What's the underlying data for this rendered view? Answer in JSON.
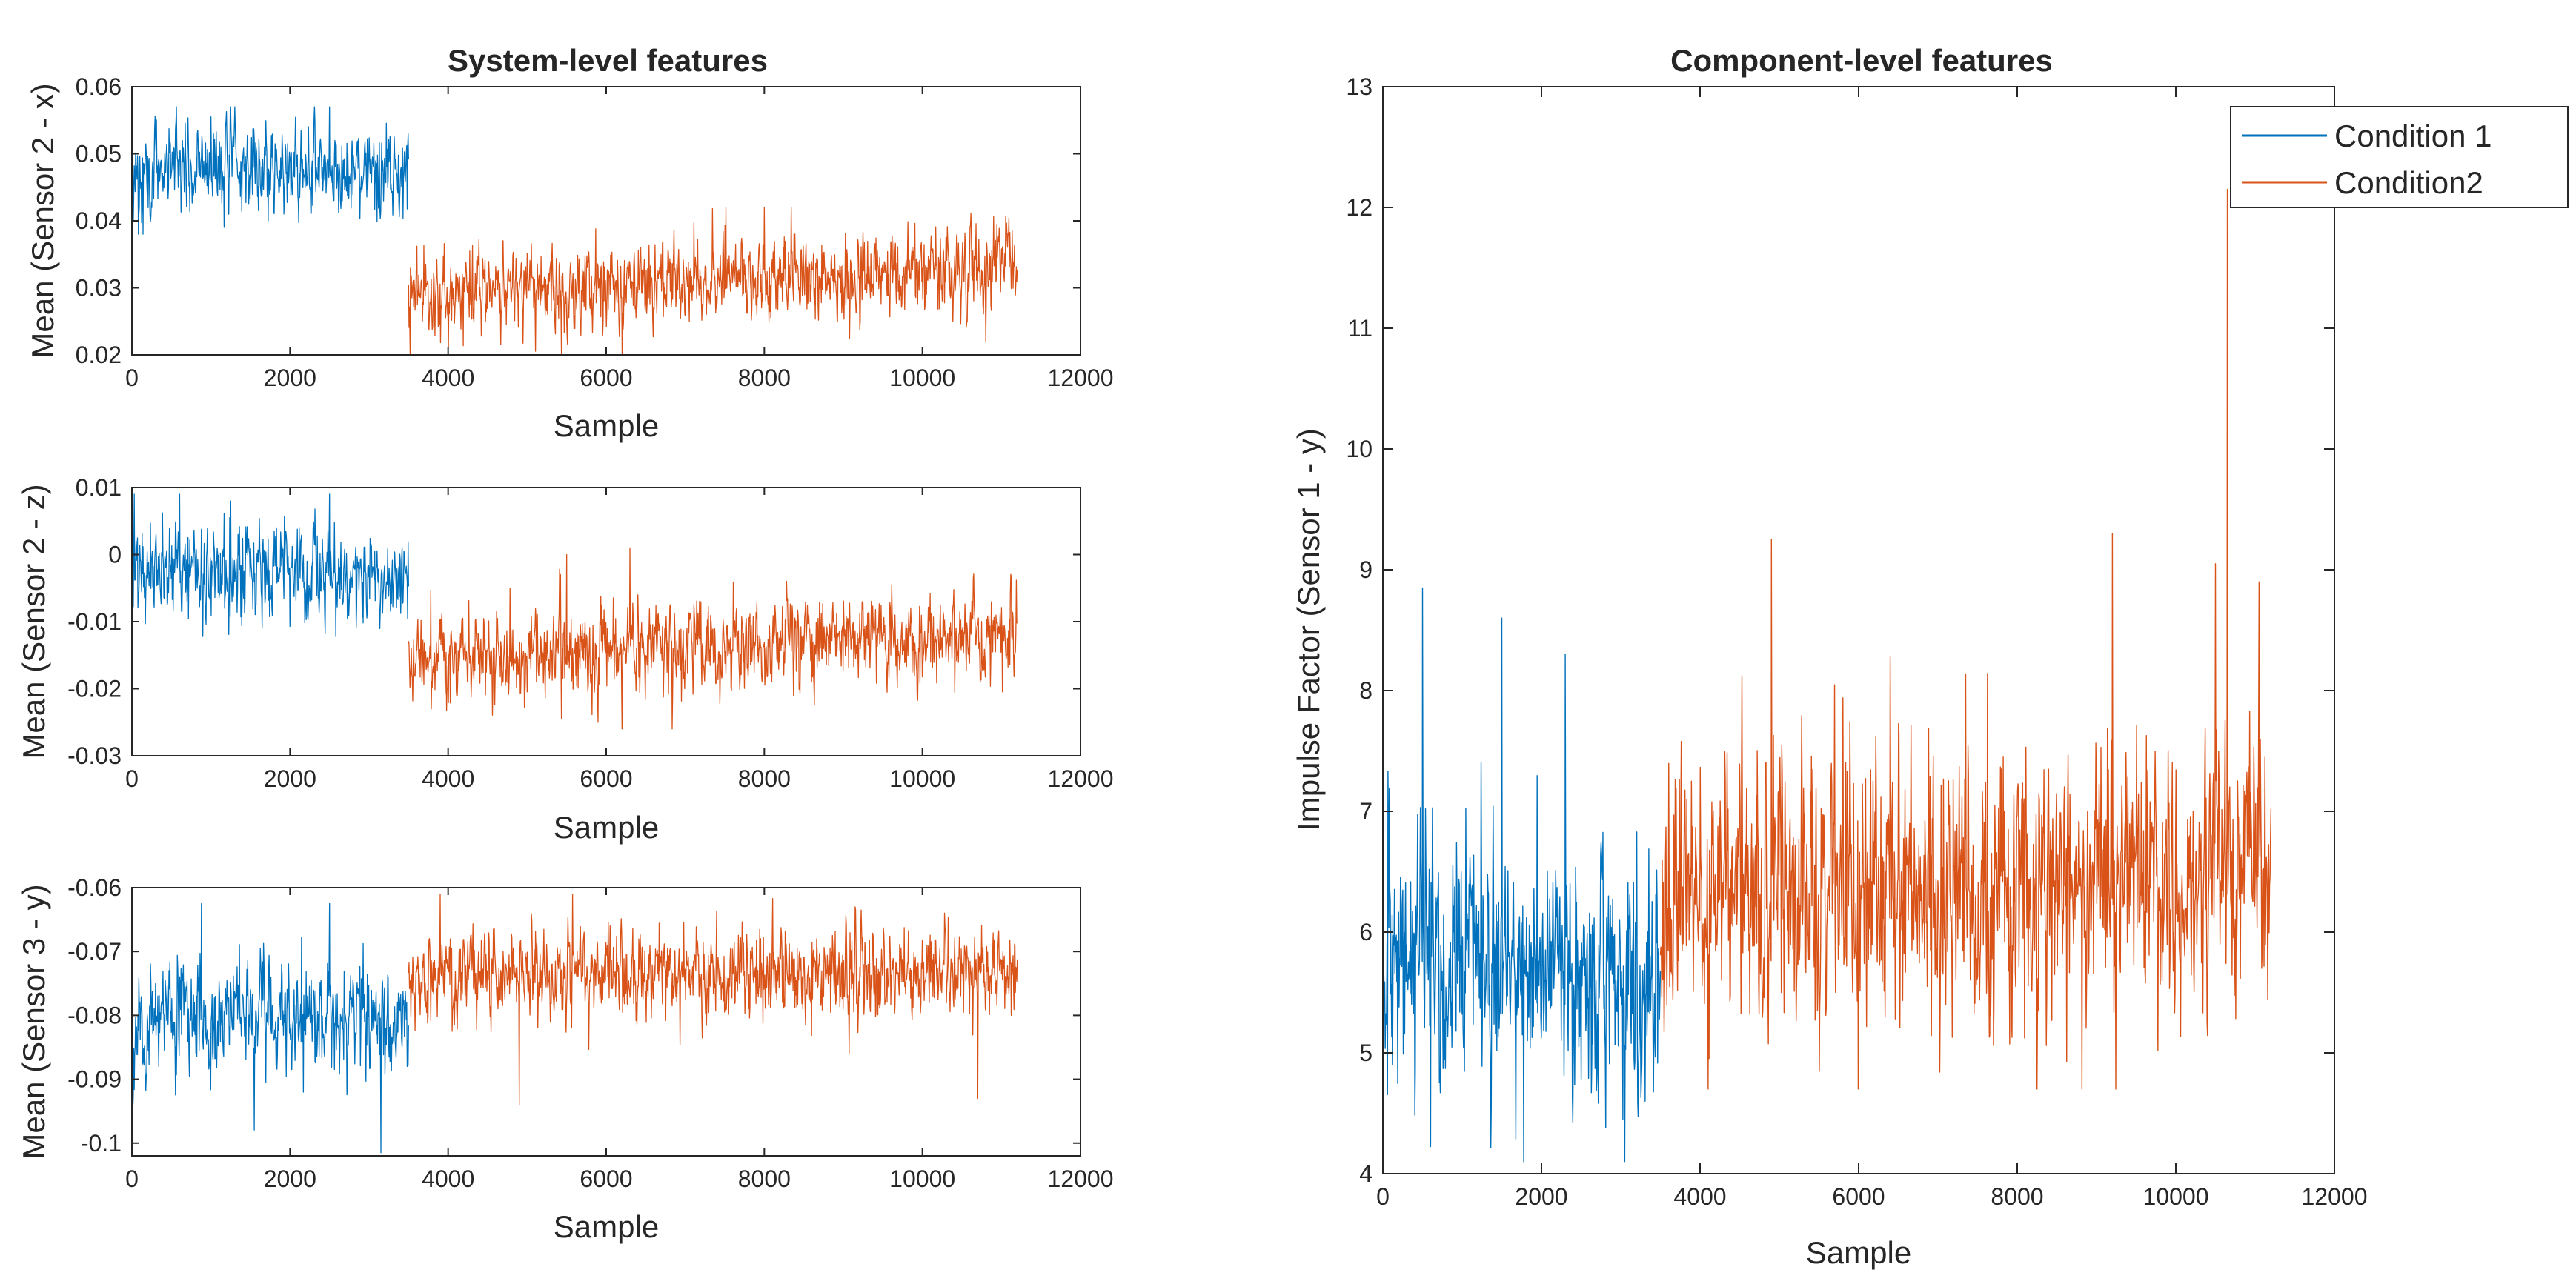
{
  "figure": {
    "background": "#ffffff",
    "colors": {
      "condition1": "#0072BD",
      "condition2": "#D95319",
      "axis": "#262626"
    }
  },
  "chart_data": [
    {
      "id": "sys-x",
      "type": "line",
      "title": "System-level features",
      "xlabel": "Sample",
      "ylabel": "Mean (Sensor 2 - x)",
      "xlim": [
        0,
        12000
      ],
      "ylim": [
        0.02,
        0.06
      ],
      "xticks": [
        0,
        2000,
        4000,
        6000,
        8000,
        10000,
        12000
      ],
      "xtick_labels": [
        "0",
        "2000",
        "4000",
        "6000",
        "8000",
        "10000",
        "12000"
      ],
      "yticks": [
        0.02,
        0.03,
        0.04,
        0.05,
        0.06
      ],
      "ytick_labels": [
        "0.02",
        "0.03",
        "0.04",
        "0.05",
        "0.06"
      ],
      "grid": false,
      "series": [
        {
          "name": "Condition 1",
          "color": "#0072BD",
          "x_range": [
            0,
            3500
          ],
          "mean": 0.0475,
          "spread": 0.0035,
          "min": 0.038,
          "max": 0.057,
          "trend": 0,
          "outliers": [
            [
              2500,
              0.057
            ],
            [
              1000,
              0.0555
            ]
          ]
        },
        {
          "name": "Condition2",
          "color": "#D95319",
          "x_range": [
            3500,
            11200
          ],
          "mean": 0.029,
          "spread": 0.0032,
          "min": 0.02,
          "max": 0.042,
          "trend": 0.004,
          "outliers": [
            [
              3520,
              0.02
            ],
            [
              8000,
              0.042
            ]
          ]
        }
      ]
    },
    {
      "id": "sys-z",
      "type": "line",
      "title": "",
      "xlabel": "Sample",
      "ylabel": "Mean (Sensor 2 - z)",
      "xlim": [
        0,
        12000
      ],
      "ylim": [
        -0.03,
        0.01
      ],
      "xticks": [
        0,
        2000,
        4000,
        6000,
        8000,
        10000,
        12000
      ],
      "xtick_labels": [
        "0",
        "2000",
        "4000",
        "6000",
        "8000",
        "10000",
        "12000"
      ],
      "yticks": [
        -0.03,
        -0.02,
        -0.01,
        0,
        0.01
      ],
      "ytick_labels": [
        "-0.03",
        "-0.02",
        "-0.01",
        "0",
        "0.01"
      ],
      "grid": false,
      "series": [
        {
          "name": "Condition 1",
          "color": "#0072BD",
          "x_range": [
            0,
            3500
          ],
          "mean": -0.003,
          "spread": 0.0035,
          "min": -0.013,
          "max": 0.009,
          "trend": 0,
          "outliers": [
            [
              1250,
              0.008
            ],
            [
              2500,
              0.009
            ],
            [
              30,
              0.009
            ]
          ]
        },
        {
          "name": "Condition2",
          "color": "#D95319",
          "x_range": [
            3500,
            11200
          ],
          "mean": -0.0155,
          "spread": 0.0033,
          "min": -0.026,
          "max": 0.001,
          "trend": 0.004,
          "outliers": [
            [
              6300,
              0.001
            ],
            [
              5500,
              0.0
            ],
            [
              6200,
              -0.026
            ]
          ]
        }
      ]
    },
    {
      "id": "sys-y3",
      "type": "line",
      "title": "",
      "xlabel": "Sample",
      "ylabel": "Mean (Sensor 3 - y)",
      "xlim": [
        0,
        12000
      ],
      "ylim": [
        -0.102,
        -0.06
      ],
      "xticks": [
        0,
        2000,
        4000,
        6000,
        8000,
        10000,
        12000
      ],
      "xtick_labels": [
        "0",
        "2000",
        "4000",
        "6000",
        "8000",
        "10000",
        "12000"
      ],
      "yticks": [
        -0.1,
        -0.09,
        -0.08,
        -0.07,
        -0.06
      ],
      "ytick_labels": [
        "-0.1",
        "-0.09",
        "-0.08",
        "-0.07",
        "-0.06"
      ],
      "grid": false,
      "series": [
        {
          "name": "Condition 1",
          "color": "#0072BD",
          "x_range": [
            0,
            3500
          ],
          "mean": -0.0805,
          "spread": 0.0045,
          "min": -0.1015,
          "max": -0.0625,
          "trend": 0,
          "outliers": [
            [
              3150,
              -0.1015
            ],
            [
              2500,
              -0.0625
            ]
          ]
        },
        {
          "name": "Condition2",
          "color": "#D95319",
          "x_range": [
            3500,
            11200
          ],
          "mean": -0.0735,
          "spread": 0.0035,
          "min": -0.094,
          "max": -0.061,
          "trend": 0,
          "outliers": [
            [
              4900,
              -0.094
            ],
            [
              10700,
              -0.093
            ],
            [
              3900,
              -0.061
            ]
          ]
        }
      ]
    },
    {
      "id": "comp",
      "type": "line",
      "title": "Component-level features",
      "xlabel": "Sample",
      "ylabel": "Impulse Factor (Sensor 1 - y)",
      "xlim": [
        0,
        12000
      ],
      "ylim": [
        4,
        13
      ],
      "xticks": [
        0,
        2000,
        4000,
        6000,
        8000,
        10000,
        12000
      ],
      "xtick_labels": [
        "0",
        "2000",
        "4000",
        "6000",
        "8000",
        "10000",
        "12000"
      ],
      "yticks": [
        4,
        5,
        6,
        7,
        8,
        9,
        10,
        11,
        12,
        13
      ],
      "ytick_labels": [
        "4",
        "5",
        "6",
        "7",
        "8",
        "9",
        "10",
        "11",
        "12",
        "13"
      ],
      "grid": false,
      "legend": {
        "location": "top-right",
        "entries": [
          "Condition 1",
          "Condition2"
        ]
      },
      "series": [
        {
          "name": "Condition 1",
          "color": "#0072BD",
          "x_range": [
            0,
            3500
          ],
          "mean": 5.9,
          "spread": 0.55,
          "min": 4.1,
          "max": 8.9,
          "trend": -0.3,
          "outliers": [
            [
              500,
              8.85
            ],
            [
              1500,
              8.6
            ],
            [
              2300,
              8.3
            ],
            [
              3050,
              4.1
            ]
          ]
        },
        {
          "name": "Condition2",
          "color": "#D95319",
          "x_range": [
            3500,
            11200
          ],
          "mean": 6.2,
          "spread": 0.6,
          "min": 4.7,
          "max": 12.15,
          "trend": 0.3,
          "outliers": [
            [
              10650,
              12.15
            ],
            [
              4900,
              9.25
            ],
            [
              9200,
              9.3
            ],
            [
              10500,
              9.05
            ],
            [
              11050,
              8.9
            ]
          ]
        }
      ]
    }
  ]
}
